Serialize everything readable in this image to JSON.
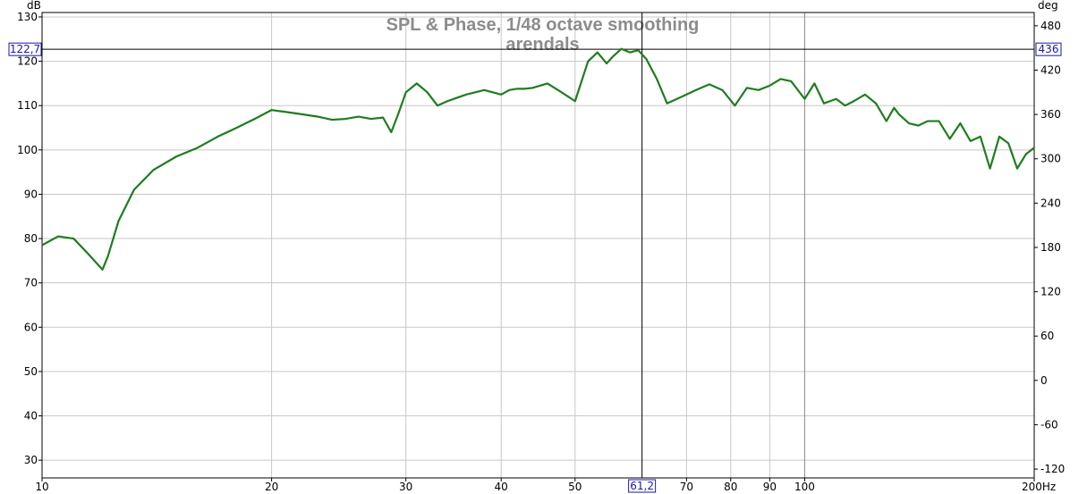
{
  "chart_data": {
    "type": "line",
    "title": "SPL & Phase, 1/48 octave smoothing",
    "subtitle": "arendals",
    "ylabel": "dB",
    "y2label": "deg",
    "xunit": "Hz",
    "xscale": "log",
    "xlim": [
      10,
      200
    ],
    "ylim": [
      26,
      131
    ],
    "y2lim": [
      -132,
      498
    ],
    "x_ticks": [
      10,
      20,
      30,
      40,
      50,
      70,
      80,
      90,
      100,
      200
    ],
    "x_tick_labels": [
      "10",
      "20",
      "30",
      "40",
      "50",
      "70",
      "80",
      "90",
      "100",
      "200Hz"
    ],
    "y_ticks": [
      30,
      40,
      50,
      60,
      70,
      80,
      90,
      100,
      110,
      120,
      130
    ],
    "y2_ticks": [
      -120,
      -60,
      0,
      60,
      120,
      180,
      240,
      300,
      360,
      420,
      480
    ],
    "grid": true,
    "cursor": {
      "x": 61.2,
      "y": 122.7,
      "x_label": "61,2",
      "y_label": "122,7",
      "y2_label": "436"
    },
    "series_color": "#1e7d1e",
    "series": [
      {
        "x": [
          10,
          10.5,
          11,
          11.5,
          12,
          12.2,
          12.6,
          13.2,
          14,
          15,
          16,
          17,
          18,
          19,
          20,
          21,
          22,
          23,
          24,
          25,
          26,
          27,
          28,
          28.7,
          29.3,
          30,
          31,
          32,
          33,
          34,
          36,
          38,
          40,
          41,
          42,
          43,
          44,
          46,
          48,
          50,
          52,
          53.5,
          55,
          56,
          57.5,
          59,
          60.5,
          62,
          64,
          66,
          68,
          70,
          72,
          75,
          78,
          81,
          84,
          87,
          90,
          93,
          96,
          100,
          103,
          106,
          110,
          113,
          116,
          120,
          124,
          128,
          131,
          133,
          137,
          141,
          145,
          150,
          155,
          160,
          165,
          170,
          175,
          180,
          185,
          190,
          195,
          200
        ],
        "y": [
          78.5,
          80.5,
          80,
          76.5,
          73,
          76,
          84,
          91,
          95.5,
          98.5,
          100.5,
          103,
          105,
          107,
          109,
          108.5,
          108,
          107.5,
          106.8,
          107,
          107.5,
          107,
          107.3,
          104,
          108,
          113,
          115,
          113,
          110,
          111,
          112.5,
          113.5,
          112.5,
          113.5,
          113.8,
          113.8,
          114,
          115,
          113,
          111,
          120,
          122,
          119.5,
          121,
          122.8,
          122,
          122.5,
          120.5,
          116,
          110.5,
          111.5,
          112.5,
          113.5,
          114.8,
          113.5,
          110,
          114,
          113.5,
          114.5,
          116,
          115.5,
          111.5,
          115,
          110.5,
          111.5,
          110,
          111,
          112.5,
          110.5,
          106.5,
          109.5,
          108,
          106,
          105.5,
          106.5,
          106.5,
          102.5,
          106,
          102,
          103,
          95.8,
          103,
          101.5,
          95.8,
          99,
          100.5
        ]
      }
    ]
  }
}
